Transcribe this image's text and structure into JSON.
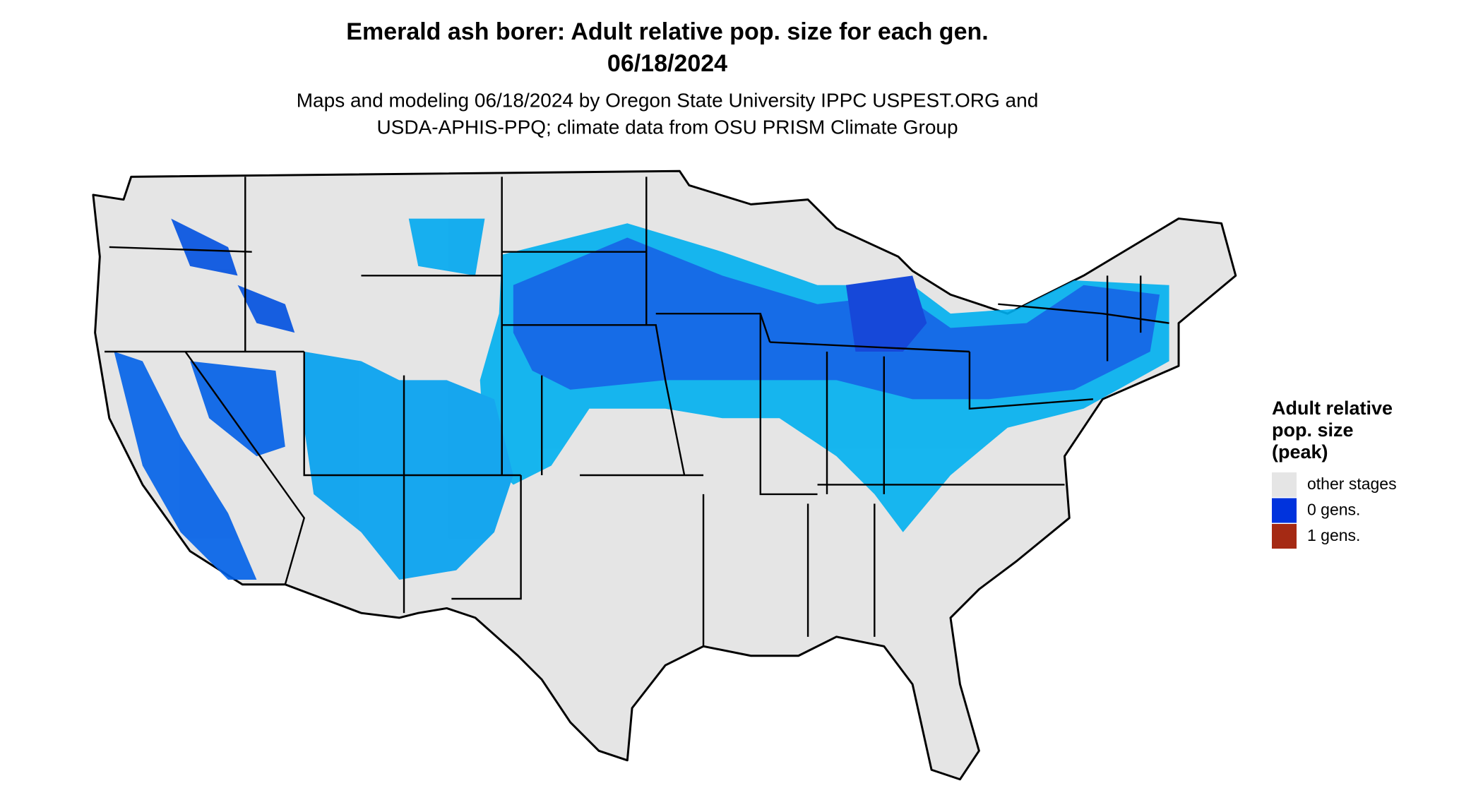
{
  "header": {
    "title": "Emerald ash borer: Adult relative pop. size for each gen.",
    "date": "06/18/2024",
    "subtitle": [
      "Maps and modeling 06/18/2024 by Oregon State University IPPC USPEST.ORG and",
      "USDA-APHIS-PPQ; climate data from OSU PRISM Climate Group"
    ]
  },
  "legend": {
    "title": [
      "Adult relative",
      "pop. size",
      "(peak)"
    ],
    "entries": [
      {
        "label": "other stages",
        "color": "#e5e5e5"
      },
      {
        "label": "0 gens.",
        "color": "#0033dd"
      },
      {
        "label": "1 gens.",
        "color": "#a52a14"
      }
    ]
  }
}
